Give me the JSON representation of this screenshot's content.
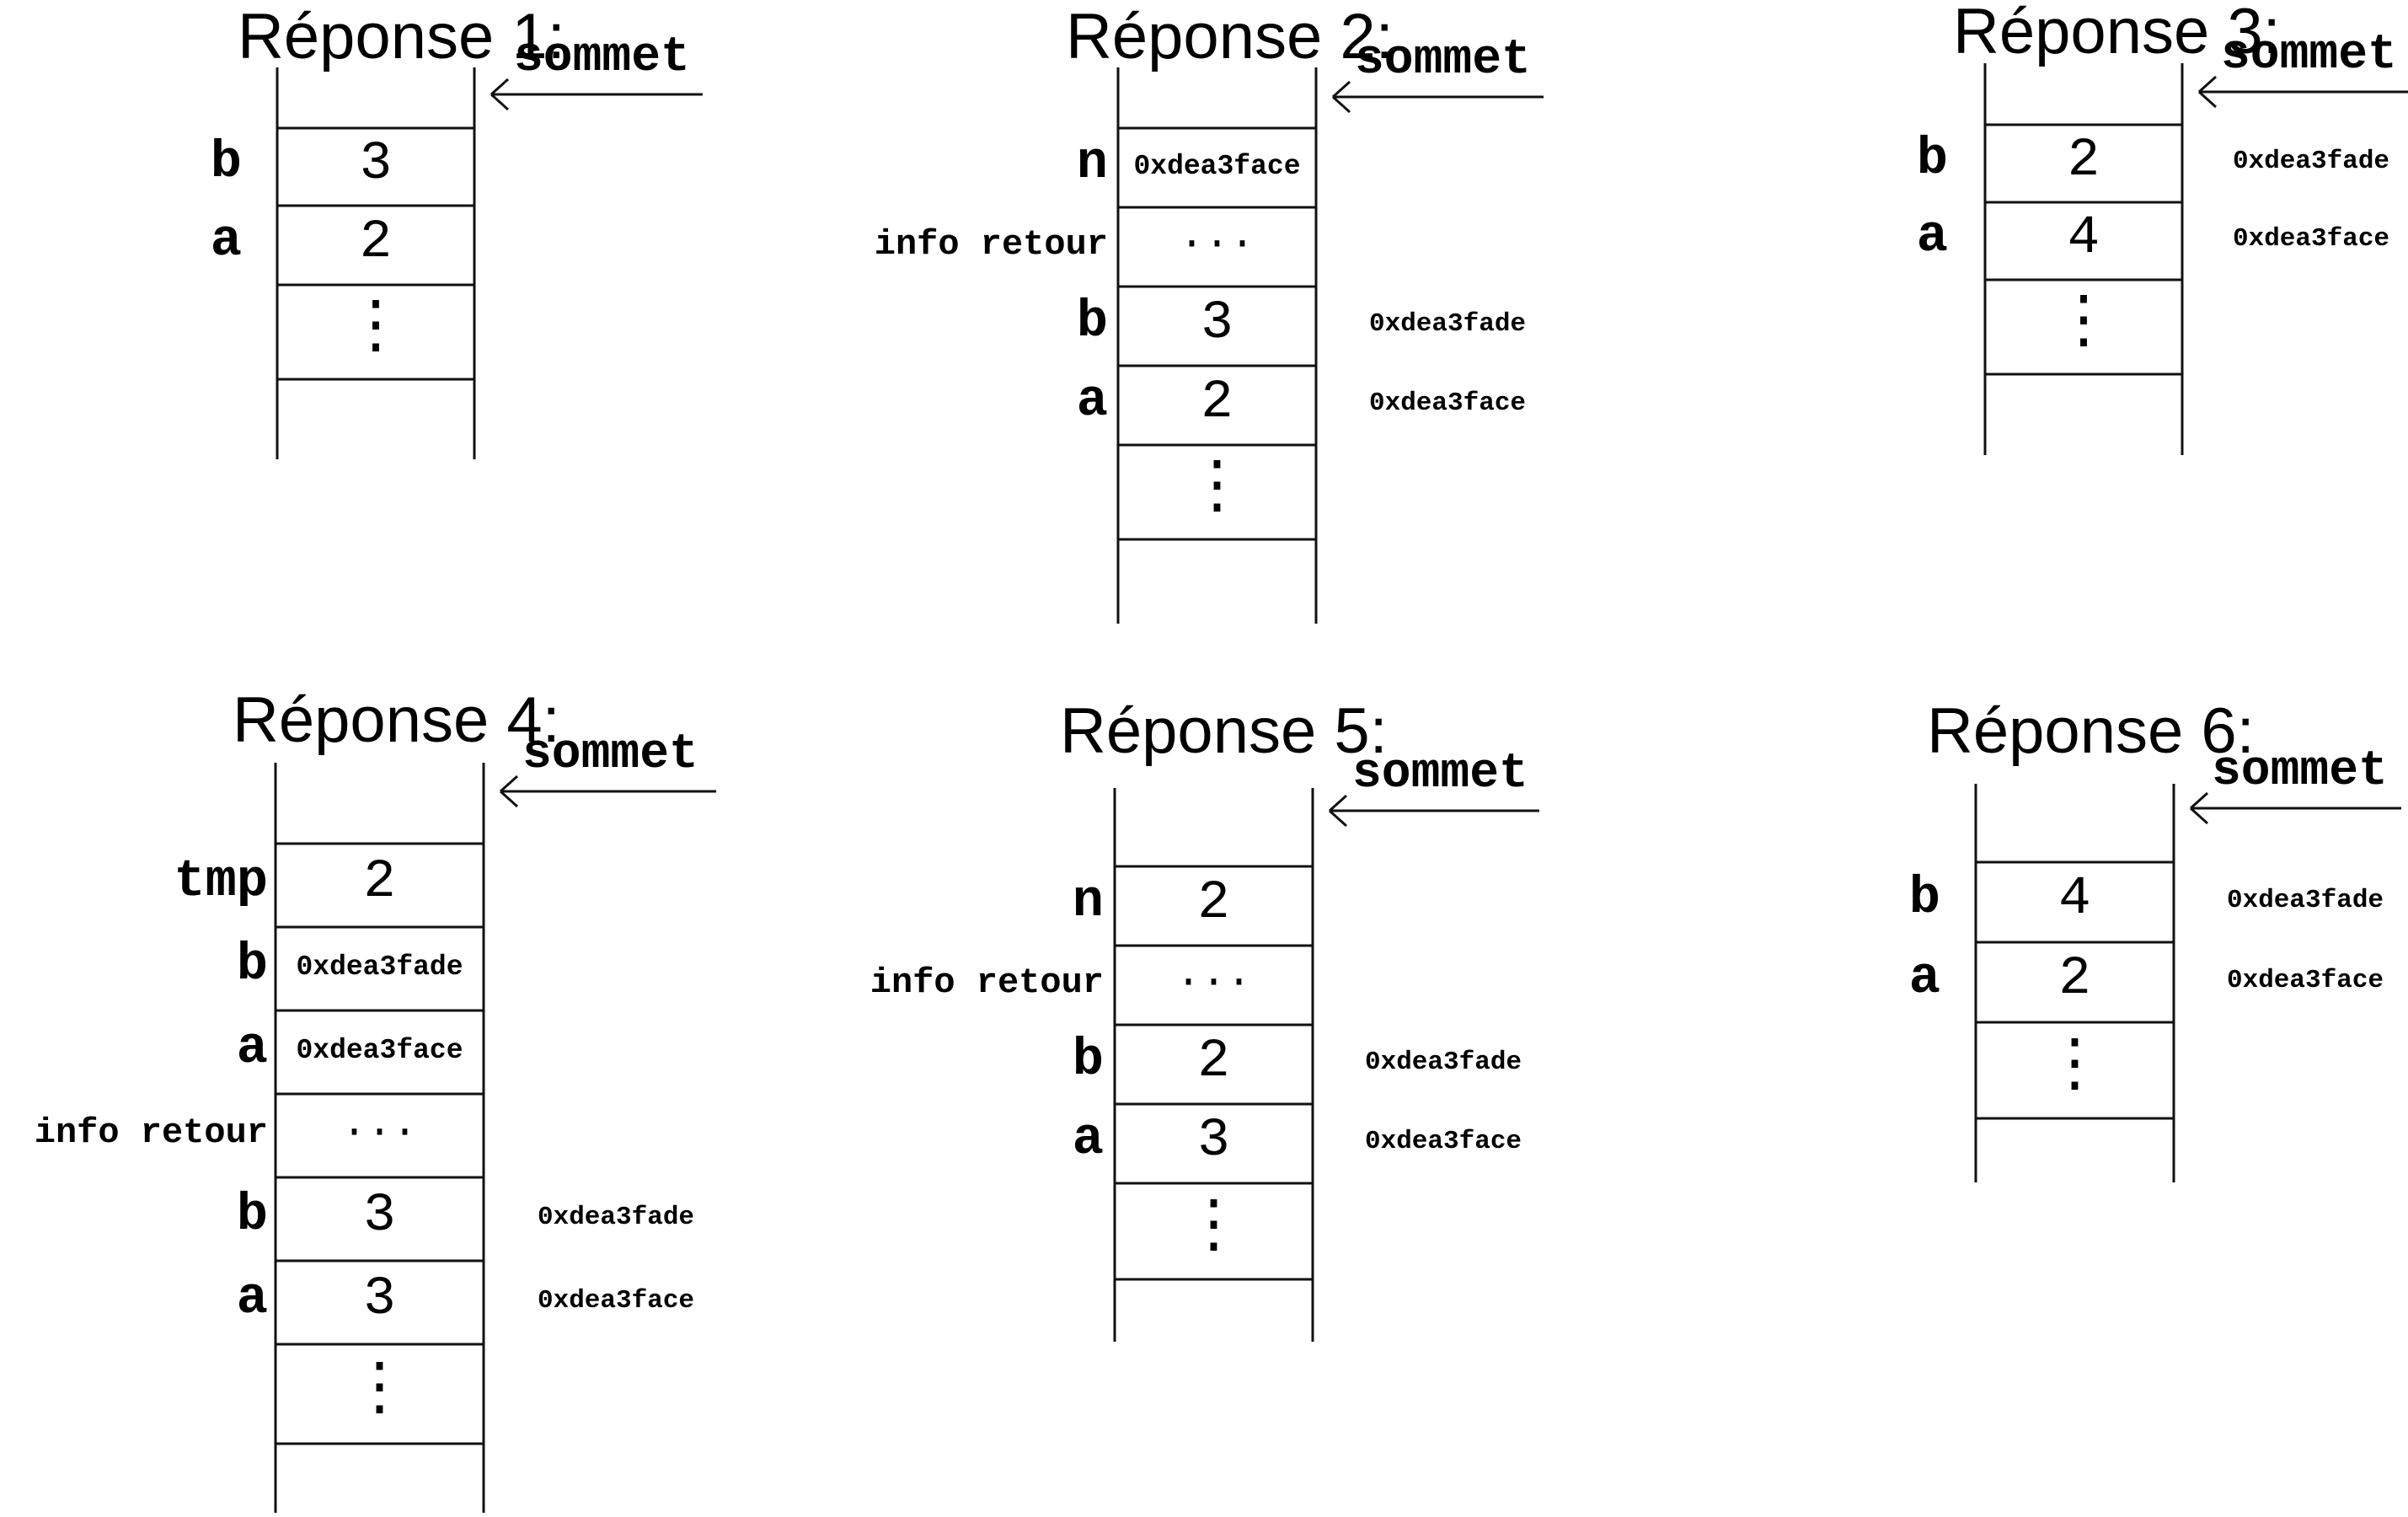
{
  "top_label": "sommet",
  "responses": [
    {
      "title": "Réponse 1:",
      "cells": [
        {
          "label": "b",
          "value": "3",
          "address": ""
        },
        {
          "label": "a",
          "value": "2",
          "address": ""
        },
        {
          "label": "",
          "value": "⋮",
          "address": ""
        }
      ]
    },
    {
      "title": "Réponse 2:",
      "cells": [
        {
          "label": "n",
          "value": "0xdea3face",
          "address": ""
        },
        {
          "label": "info retour",
          "value": "···",
          "address": ""
        },
        {
          "label": "b",
          "value": "3",
          "address": "0xdea3fade"
        },
        {
          "label": "a",
          "value": "2",
          "address": "0xdea3face"
        },
        {
          "label": "",
          "value": "⋮",
          "address": ""
        }
      ]
    },
    {
      "title": "Réponse 3:",
      "cells": [
        {
          "label": "b",
          "value": "2",
          "address": "0xdea3fade"
        },
        {
          "label": "a",
          "value": "4",
          "address": "0xdea3face"
        },
        {
          "label": "",
          "value": "⋮",
          "address": ""
        }
      ]
    },
    {
      "title": "Réponse 4:",
      "cells": [
        {
          "label": "tmp",
          "value": "2",
          "address": ""
        },
        {
          "label": "b",
          "value": "0xdea3fade",
          "address": ""
        },
        {
          "label": "a",
          "value": "0xdea3face",
          "address": ""
        },
        {
          "label": "info retour",
          "value": "···",
          "address": ""
        },
        {
          "label": "b",
          "value": "3",
          "address": "0xdea3fade"
        },
        {
          "label": "a",
          "value": "3",
          "address": "0xdea3face"
        },
        {
          "label": "",
          "value": "⋮",
          "address": ""
        }
      ]
    },
    {
      "title": "Réponse 5:",
      "cells": [
        {
          "label": "n",
          "value": "2",
          "address": ""
        },
        {
          "label": "info retour",
          "value": "···",
          "address": ""
        },
        {
          "label": "b",
          "value": "2",
          "address": "0xdea3fade"
        },
        {
          "label": "a",
          "value": "3",
          "address": "0xdea3face"
        },
        {
          "label": "",
          "value": "⋮",
          "address": ""
        }
      ]
    },
    {
      "title": "Réponse 6:",
      "cells": [
        {
          "label": "b",
          "value": "4",
          "address": "0xdea3fade"
        },
        {
          "label": "a",
          "value": "2",
          "address": "0xdea3face"
        },
        {
          "label": "",
          "value": "⋮",
          "address": ""
        }
      ]
    }
  ]
}
